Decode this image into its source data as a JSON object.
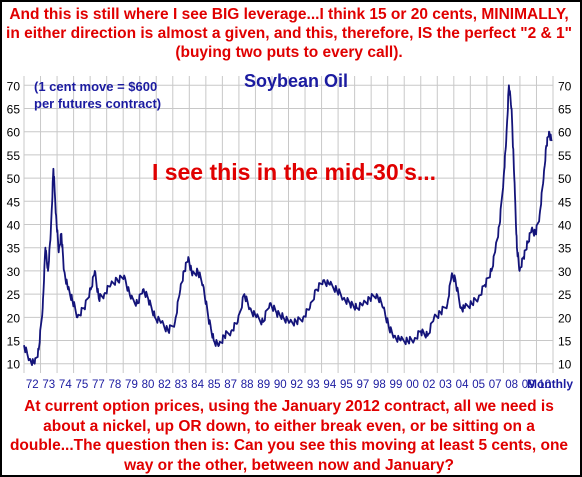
{
  "top_note": "And this is still where I see BIG leverage...I think 15 or 20 cents, MINIMALLY, in either direction is almost a given, and this, therefore, IS the perfect \"2 & 1\" (buying two puts to every call).",
  "bottom_note": "At current option prices, using the January 2012 contract, all we need is about a nickel, up OR down, to either break even, or be sitting on a double...The question then is: Can you see this moving at least 5 cents, one way or the other, between now and January?",
  "colors": {
    "note_text": "#e00000",
    "title": "#1b1ba0",
    "line": "#14147a",
    "grid": "#c8c8c8",
    "annotation": "#1b1ba0"
  },
  "chart_data": {
    "type": "line",
    "title": "Soybean Oil",
    "subtitle_lines": [
      "(1 cent move = $600",
      "per futures contract)"
    ],
    "annotation": "I see this in the mid-30's...",
    "x_unit_label": "Monthly",
    "xlim": [
      1972,
      2011.6
    ],
    "ylim": [
      8,
      72
    ],
    "ytick_values": [
      10,
      15,
      20,
      25,
      30,
      35,
      40,
      45,
      50,
      55,
      60,
      65,
      70
    ],
    "ytick_labels": [
      "10",
      "15",
      "20",
      "25",
      "30",
      "35",
      "40",
      "45",
      "50",
      "55",
      "60",
      "65",
      "70"
    ],
    "xtick_labels": [
      "72",
      "73",
      "74",
      "75",
      "77",
      "78",
      "79",
      "80",
      "82",
      "83",
      "84",
      "85",
      "87",
      "88",
      "89",
      "90",
      "92",
      "93",
      "94",
      "95",
      "97",
      "98",
      "99",
      "00",
      "02",
      "03",
      "04",
      "05",
      "07",
      "08",
      "09",
      "10"
    ],
    "grid": true,
    "series": [
      {
        "values": [
          [
            1972.0,
            14
          ],
          [
            1972.4,
            11
          ],
          [
            1972.8,
            10
          ],
          [
            1973.1,
            13
          ],
          [
            1973.4,
            22
          ],
          [
            1973.6,
            35
          ],
          [
            1973.8,
            30
          ],
          [
            1974.0,
            38
          ],
          [
            1974.2,
            52
          ],
          [
            1974.4,
            42
          ],
          [
            1974.6,
            34
          ],
          [
            1974.8,
            38
          ],
          [
            1975.0,
            30
          ],
          [
            1975.3,
            26
          ],
          [
            1975.6,
            24
          ],
          [
            1976.0,
            20
          ],
          [
            1976.5,
            22
          ],
          [
            1977.0,
            26
          ],
          [
            1977.3,
            30
          ],
          [
            1977.6,
            24
          ],
          [
            1978.0,
            25
          ],
          [
            1978.5,
            27
          ],
          [
            1979.0,
            28
          ],
          [
            1979.5,
            29
          ],
          [
            1980.0,
            24
          ],
          [
            1980.5,
            23
          ],
          [
            1980.9,
            26
          ],
          [
            1981.3,
            24
          ],
          [
            1981.8,
            20
          ],
          [
            1982.3,
            19
          ],
          [
            1982.8,
            17
          ],
          [
            1983.3,
            19
          ],
          [
            1983.7,
            26
          ],
          [
            1984.0,
            30
          ],
          [
            1984.3,
            33
          ],
          [
            1984.6,
            29
          ],
          [
            1985.0,
            30
          ],
          [
            1985.4,
            27
          ],
          [
            1985.8,
            20
          ],
          [
            1986.2,
            15
          ],
          [
            1986.6,
            14
          ],
          [
            1987.0,
            16
          ],
          [
            1987.5,
            17
          ],
          [
            1988.0,
            19
          ],
          [
            1988.5,
            25
          ],
          [
            1988.9,
            22
          ],
          [
            1989.4,
            20
          ],
          [
            1989.9,
            19
          ],
          [
            1990.4,
            23
          ],
          [
            1990.9,
            21
          ],
          [
            1991.4,
            20
          ],
          [
            1991.9,
            19
          ],
          [
            1992.4,
            19
          ],
          [
            1992.9,
            20
          ],
          [
            1993.4,
            22
          ],
          [
            1993.9,
            26
          ],
          [
            1994.4,
            28
          ],
          [
            1994.9,
            27
          ],
          [
            1995.4,
            26
          ],
          [
            1995.9,
            24
          ],
          [
            1996.4,
            23
          ],
          [
            1996.9,
            22
          ],
          [
            1997.4,
            23
          ],
          [
            1997.9,
            24
          ],
          [
            1998.4,
            25
          ],
          [
            1998.9,
            22
          ],
          [
            1999.3,
            18
          ],
          [
            1999.7,
            16
          ],
          [
            2000.2,
            15
          ],
          [
            2000.7,
            15
          ],
          [
            2001.2,
            15
          ],
          [
            2001.7,
            17
          ],
          [
            2002.2,
            16
          ],
          [
            2002.7,
            20
          ],
          [
            2003.2,
            21
          ],
          [
            2003.7,
            23
          ],
          [
            2004.0,
            29
          ],
          [
            2004.3,
            28
          ],
          [
            2004.7,
            22
          ],
          [
            2005.0,
            22
          ],
          [
            2005.5,
            23
          ],
          [
            2006.0,
            24
          ],
          [
            2006.5,
            27
          ],
          [
            2007.0,
            30
          ],
          [
            2007.3,
            35
          ],
          [
            2007.6,
            40
          ],
          [
            2007.9,
            50
          ],
          [
            2008.1,
            58
          ],
          [
            2008.3,
            70
          ],
          [
            2008.5,
            65
          ],
          [
            2008.7,
            50
          ],
          [
            2008.9,
            35
          ],
          [
            2009.1,
            30
          ],
          [
            2009.4,
            33
          ],
          [
            2009.7,
            36
          ],
          [
            2010.0,
            39
          ],
          [
            2010.3,
            38
          ],
          [
            2010.6,
            42
          ],
          [
            2010.9,
            50
          ],
          [
            2011.1,
            57
          ],
          [
            2011.3,
            60
          ],
          [
            2011.5,
            58
          ]
        ]
      }
    ]
  }
}
